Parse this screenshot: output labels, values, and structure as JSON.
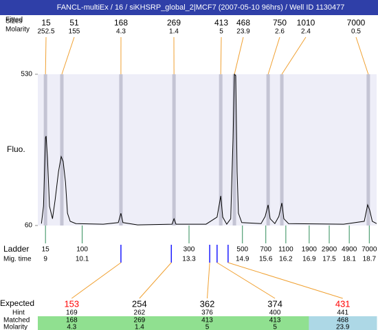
{
  "chart_data": {
    "type": "line",
    "title": "FANCL-multiEx / 16 / siKHSRP_global_2|MCF7 (2007-05-10 96hrs) / Well ID 1130477",
    "ylabel": "Fluo.",
    "ylim": [
      60,
      530
    ],
    "yticks": [
      60,
      530
    ],
    "xlim": [
      8.77,
      18.92
    ],
    "color": "#000000",
    "background": "#eeeef8",
    "x": [
      8.88,
      8.94,
      9.0,
      9.02,
      9.06,
      9.12,
      9.21,
      9.29,
      9.39,
      9.47,
      9.53,
      9.6,
      9.66,
      9.74,
      9.91,
      10.73,
      11.18,
      11.26,
      11.32,
      11.76,
      12.79,
      12.85,
      12.91,
      13.81,
      14.14,
      14.25,
      14.31,
      14.43,
      14.55,
      14.62,
      14.66,
      14.7,
      14.74,
      14.78,
      14.88,
      15.46,
      15.58,
      15.67,
      15.73,
      15.87,
      15.99,
      16.08,
      16.14,
      16.28,
      17.93,
      18.55,
      18.65,
      18.71,
      18.79,
      18.92
    ],
    "values": [
      66,
      120,
      333,
      338,
      269,
      120,
      81,
      141,
      227,
      274,
      259,
      195,
      98,
      73,
      66,
      64,
      69,
      98,
      69,
      62,
      64,
      81,
      64,
      64,
      86,
      152,
      86,
      64,
      81,
      333,
      530,
      526,
      227,
      98,
      69,
      66,
      88,
      124,
      81,
      66,
      88,
      130,
      81,
      66,
      64,
      73,
      124,
      109,
      73,
      66
    ]
  },
  "peaks": {
    "labels": [
      "Fitted",
      "Sizes",
      "Molarity"
    ],
    "items": [
      {
        "size": 15,
        "molarity": 252.5,
        "time": 9.0
      },
      {
        "size": 51,
        "molarity": 155,
        "time": 9.49
      },
      {
        "size": 168,
        "molarity": 4.3,
        "time": 11.26
      },
      {
        "size": 269,
        "molarity": 1.4,
        "time": 12.85
      },
      {
        "size": 413,
        "molarity": 5,
        "time": 14.25
      },
      {
        "size": 468,
        "molarity": 23.9,
        "time": 14.66
      },
      {
        "size": 750,
        "molarity": 2.6,
        "time": 15.67
      },
      {
        "size": 1010,
        "molarity": 2.4,
        "time": 16.08
      },
      {
        "size": 7000,
        "molarity": 0.5,
        "time": 18.67
      }
    ]
  },
  "ladder": {
    "labels": [
      "Ladder",
      "Mig. time"
    ],
    "items": [
      {
        "size": 15,
        "time": 9
      },
      {
        "size": 100,
        "time": 10.1
      },
      {
        "size": 300,
        "time": 13.3
      },
      {
        "size": 500,
        "time": 14.9
      },
      {
        "size": 700,
        "time": 15.6
      },
      {
        "size": 1100,
        "time": 16.2
      },
      {
        "size": 1900,
        "time": 16.9
      },
      {
        "size": 2900,
        "time": 17.5
      },
      {
        "size": 4900,
        "time": 18.1
      },
      {
        "size": 7000,
        "time": 18.7
      }
    ]
  },
  "expected": {
    "labels": [
      "Expected",
      "Hint",
      "Matched",
      "Molarity"
    ],
    "items": [
      {
        "expected": 153,
        "hint": 169,
        "matched": 168,
        "molarity": 4.3,
        "time": 11.26,
        "color": "#ff0000",
        "background": "#90e090"
      },
      {
        "expected": 254,
        "hint": 262,
        "matched": 269,
        "molarity": 1.4,
        "time": 12.77,
        "color": "#000000",
        "background": "#90e090"
      },
      {
        "expected": 362,
        "hint": 376,
        "matched": 413,
        "molarity": 5,
        "time": 13.92,
        "color": "#000000",
        "background": "#90e090"
      },
      {
        "expected": 374,
        "hint": 400,
        "matched": 413,
        "molarity": 5,
        "time": 14.14,
        "color": "#000000",
        "background": "#90e090"
      },
      {
        "expected": 431,
        "hint": 441,
        "matched": 468,
        "molarity": 23.9,
        "time": 14.47,
        "color": "#ff0000",
        "background": "#add8e6"
      }
    ]
  }
}
